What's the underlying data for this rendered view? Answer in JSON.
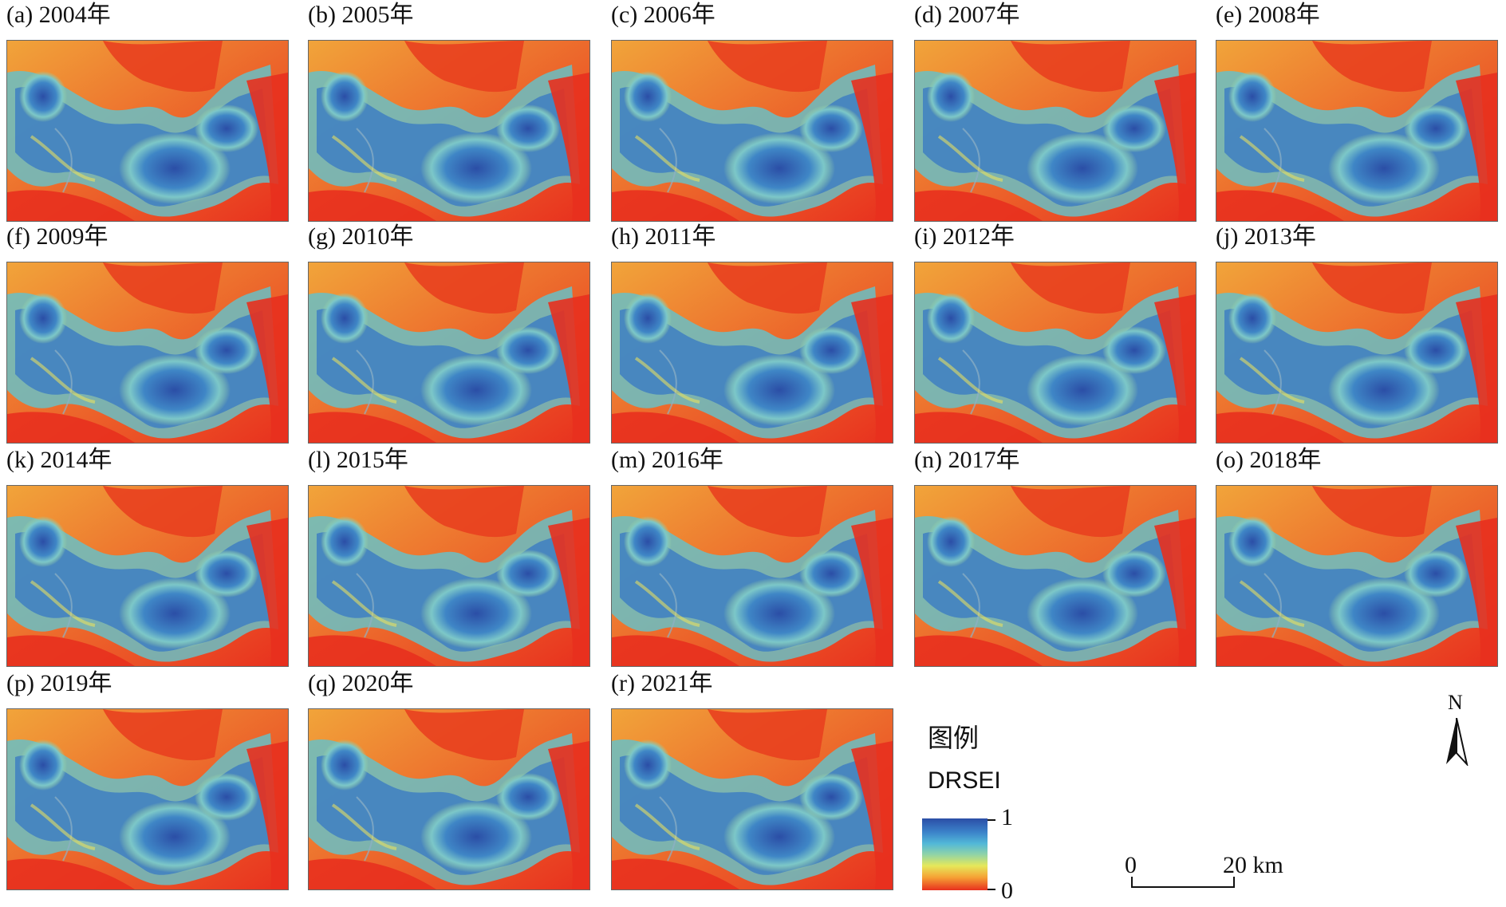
{
  "panels": [
    {
      "label": "(a) 2004年"
    },
    {
      "label": "(b) 2005年"
    },
    {
      "label": "(c) 2006年"
    },
    {
      "label": "(d) 2007年"
    },
    {
      "label": "(e) 2008年"
    },
    {
      "label": "(f) 2009年"
    },
    {
      "label": "(g) 2010年"
    },
    {
      "label": "(h) 2011年"
    },
    {
      "label": "(i) 2012年"
    },
    {
      "label": "(j) 2013年"
    },
    {
      "label": "(k) 2014年"
    },
    {
      "label": "(l) 2015年"
    },
    {
      "label": "(m) 2016年"
    },
    {
      "label": "(n) 2017年"
    },
    {
      "label": "(o) 2018年"
    },
    {
      "label": "(p) 2019年"
    },
    {
      "label": "(q) 2020年"
    },
    {
      "label": "(r) 2021年"
    }
  ],
  "legend": {
    "title": "图例",
    "index_name": "DRSEI",
    "max_label": "1",
    "min_label": "0",
    "colors": {
      "high": "#2b4ea6",
      "mid": "#e6e85a",
      "low": "#e8301e"
    }
  },
  "north_arrow": {
    "letter": "N"
  },
  "scale_bar": {
    "start_label": "0",
    "end_label": "20 km"
  }
}
